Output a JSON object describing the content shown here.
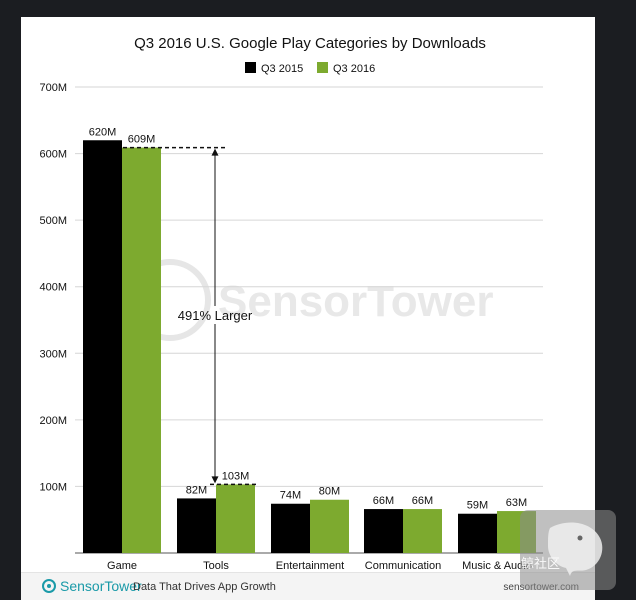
{
  "chart_data": {
    "type": "bar",
    "title": "Q3 2016 U.S. Google Play Categories by Downloads",
    "categories": [
      "Game",
      "Tools",
      "Entertainment",
      "Communication",
      "Music & Audio"
    ],
    "series": [
      {
        "name": "Q3 2015",
        "color": "#000000",
        "values": [
          620,
          82,
          74,
          66,
          59
        ],
        "labels": [
          "620M",
          "82M",
          "74M",
          "66M",
          "59M"
        ]
      },
      {
        "name": "Q3 2016",
        "color": "#7daa2f",
        "values": [
          609,
          103,
          80,
          66,
          63
        ],
        "labels": [
          "609M",
          "103M",
          "80M",
          "66M",
          "63M"
        ]
      }
    ],
    "ylim": [
      0,
      700
    ],
    "yticks": [
      0,
      100,
      200,
      300,
      400,
      500,
      600,
      700
    ],
    "yticklabels": [
      "",
      "100M",
      "200M",
      "300M",
      "400M",
      "500M",
      "600M",
      "700M"
    ],
    "grid": true,
    "legend_position": "top-right",
    "xlabel": "",
    "ylabel": "",
    "annotation": {
      "text": "491% Larger",
      "from_value": 103,
      "to_value": 609,
      "from_category": "Tools",
      "to_category": "Game"
    },
    "watermark": "SensorTower"
  },
  "footer": {
    "brand": "SensorTower",
    "tagline": "Data That Drives App Growth",
    "url": "sensortower.com"
  },
  "overlay": {
    "text": "白鲸社区"
  }
}
